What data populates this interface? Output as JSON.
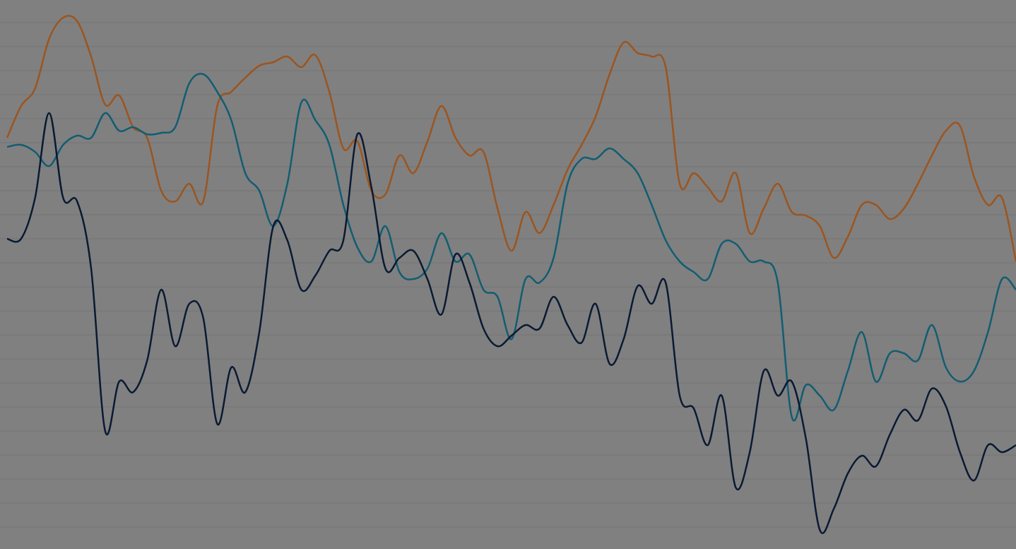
{
  "chart_data": {
    "type": "line",
    "categories": [
      null,
      null,
      null,
      null,
      null,
      null,
      null,
      null,
      null,
      null,
      null,
      null,
      null,
      null,
      null,
      null,
      null,
      null,
      null,
      null,
      null,
      null,
      null,
      null,
      null,
      null,
      null,
      null,
      null,
      null,
      null,
      null,
      null,
      null,
      null,
      null,
      null,
      null,
      null,
      null,
      null,
      null,
      null,
      null,
      null,
      null,
      null,
      null,
      null,
      null,
      null,
      null,
      null,
      null,
      null,
      null,
      null,
      null,
      null,
      null,
      null,
      null,
      null,
      null,
      null,
      null,
      null,
      null,
      null,
      null,
      null,
      null,
      null
    ],
    "ylim": [
      0,
      777
    ],
    "yticks": [
      31,
      65,
      99,
      133,
      167,
      201,
      235,
      269,
      303,
      337,
      371,
      405,
      439,
      473,
      507,
      541,
      575,
      609,
      643,
      677,
      711,
      745
    ],
    "grid": true,
    "series": [
      {
        "color": "#9b5520",
        "values": [
          582,
          627,
          652,
          722,
          752,
          747,
          697,
          629,
          642,
          597,
          582,
          507,
          492,
          517,
          492,
          627,
          647,
          667,
          684,
          689,
          697,
          682,
          699,
          647,
          567,
          577,
          507,
          502,
          557,
          532,
          577,
          627,
          582,
          557,
          562,
          482,
          422,
          477,
          447,
          487,
          537,
          572,
          612,
          672,
          717,
          702,
          697,
          682,
          517,
          532,
          512,
          492,
          532,
          447,
          482,
          517,
          477,
          472,
          457,
          412,
          442,
          487,
          487,
          467,
          482,
          517,
          557,
          592,
          599,
          527,
          487,
          497,
          407
        ]
      },
      {
        "color": "#125d72",
        "values": [
          569,
          572,
          562,
          542,
          572,
          585,
          582,
          617,
          592,
          597,
          587,
          589,
          597,
          659,
          672,
          647,
          607,
          532,
          507,
          457,
          517,
          632,
          607,
          572,
          487,
          427,
          407,
          457,
          392,
          382,
          397,
          447,
          407,
          417,
          367,
          357,
          297,
          382,
          377,
          412,
          517,
          552,
          552,
          567,
          552,
          532,
          487,
          437,
          407,
          392,
          382,
          432,
          432,
          407,
          407,
          377,
          187,
          232,
          217,
          197,
          252,
          307,
          237,
          277,
          277,
          267,
          317,
          257,
          237,
          252,
          307,
          382,
          367
        ]
      },
      {
        "color": "#0a1a33",
        "values": [
          439,
          439,
          497,
          617,
          497,
          492,
          397,
          167,
          237,
          222,
          267,
          367,
          287,
          347,
          327,
          177,
          257,
          222,
          307,
          457,
          437,
          367,
          387,
          422,
          437,
          587,
          512,
          397,
          412,
          422,
          382,
          332,
          417,
          377,
          312,
          287,
          302,
          317,
          312,
          357,
          317,
          292,
          347,
          262,
          297,
          372,
          347,
          377,
          217,
          199,
          147,
          217,
          87,
          137,
          252,
          217,
          237,
          157,
          27,
          57,
          107,
          132,
          117,
          162,
          197,
          182,
          227,
          202,
          137,
          97,
          147,
          137,
          147
        ]
      }
    ]
  }
}
